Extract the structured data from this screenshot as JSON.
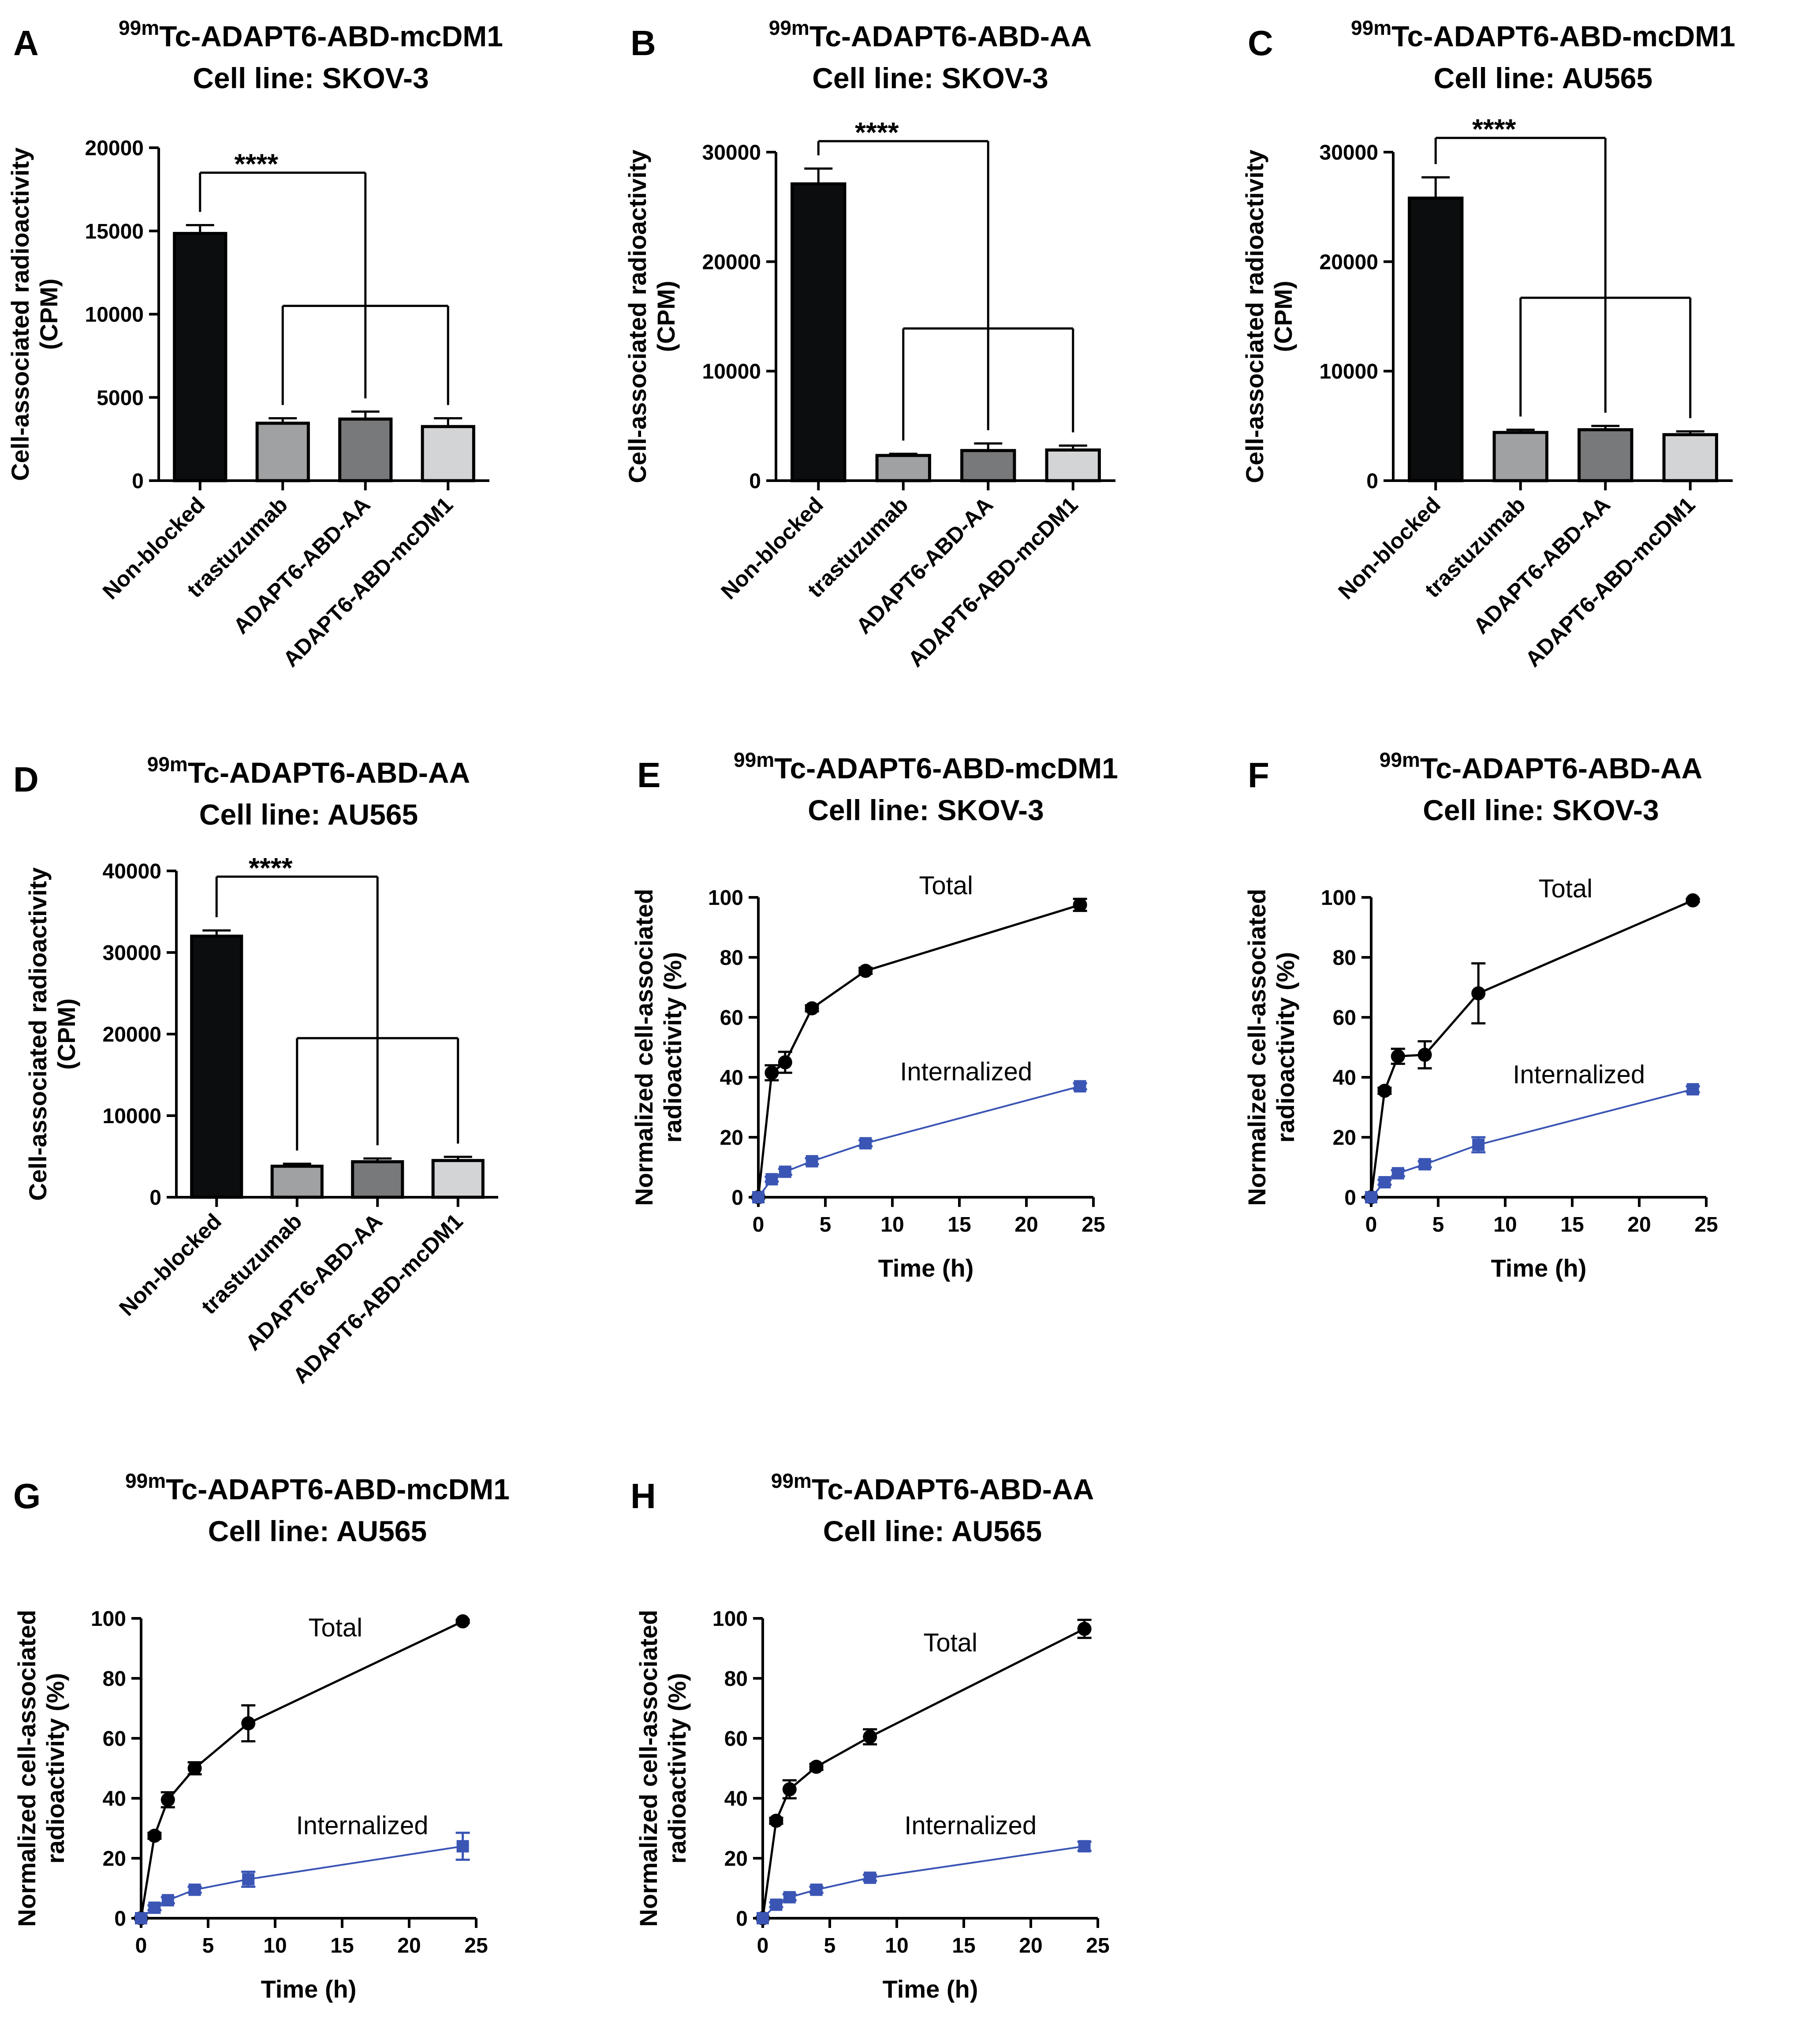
{
  "colors": {
    "bar_fills": [
      "#0b0d0e",
      "#a0a1a3",
      "#78797b",
      "#d3d4d5"
    ],
    "total": "#000000",
    "internalized": "#3a55b4",
    "axis": "#000000"
  },
  "chart_data": [
    {
      "panel": "A",
      "type": "bar",
      "title_sup": "99m",
      "title_line1": "Tc-ADAPT6-ABD-mcDM1",
      "title_line2": "Cell line: SKOV-3",
      "ylabel_line1": "Cell-associated radioactivity",
      "ylabel_line2": "(CPM)",
      "categories": [
        "Non-blocked",
        "trastuzumab",
        "ADAPT6-ABD-AA",
        "ADAPT6-ABD-mcDM1"
      ],
      "values": [
        14850,
        3450,
        3700,
        3250
      ],
      "errors": [
        500,
        300,
        450,
        500
      ],
      "ylim": [
        0,
        20000
      ],
      "yticks": [
        0,
        5000,
        10000,
        15000,
        20000
      ],
      "yticklabels": [
        "0",
        "5000",
        "10000",
        "15000",
        "20000"
      ],
      "significance": "****",
      "bracket_top": 18500,
      "bracket_low": 10500
    },
    {
      "panel": "B",
      "type": "bar",
      "title_sup": "99m",
      "title_line1": "Tc-ADAPT6-ABD-AA",
      "title_line2": "Cell line: SKOV-3",
      "ylabel_line1": "Cell-associated radioactivity",
      "ylabel_line2": "(CPM)",
      "categories": [
        "Non-blocked",
        "trastuzumab",
        "ADAPT6-ABD-AA",
        "ADAPT6-ABD-mcDM1"
      ],
      "values": [
        27100,
        2300,
        2750,
        2800
      ],
      "errors": [
        1400,
        150,
        650,
        400
      ],
      "ylim": [
        0,
        30000
      ],
      "yticks": [
        0,
        10000,
        20000,
        30000
      ],
      "yticklabels": [
        "0",
        "10000",
        "20000",
        "30000"
      ],
      "significance": "****",
      "bracket_top": 31000,
      "bracket_low": 13900
    },
    {
      "panel": "C",
      "type": "bar",
      "title_sup": "99m",
      "title_line1": "Tc-ADAPT6-ABD-mcDM1",
      "title_line2": "Cell line: AU565",
      "ylabel_line1": "Cell-associated radioactivity",
      "ylabel_line2": "(CPM)",
      "categories": [
        "Non-blocked",
        "trastuzumab",
        "ADAPT6-ABD-AA",
        "ADAPT6-ABD-mcDM1"
      ],
      "values": [
        25800,
        4400,
        4650,
        4200
      ],
      "errors": [
        1900,
        250,
        350,
        300
      ],
      "ylim": [
        0,
        30000
      ],
      "yticks": [
        0,
        10000,
        20000,
        30000
      ],
      "yticklabels": [
        "0",
        "10000",
        "20000",
        "30000"
      ],
      "significance": "****",
      "bracket_top": 31300,
      "bracket_low": 16700
    },
    {
      "panel": "D",
      "type": "bar",
      "title_sup": "99m",
      "title_line1": "Tc-ADAPT6-ABD-AA",
      "title_line2": "Cell line: AU565",
      "ylabel_line1": "Cell-associated radioactivity",
      "ylabel_line2": "(CPM)",
      "categories": [
        "Non-blocked",
        "trastuzumab",
        "ADAPT6-ABD-AA",
        "ADAPT6-ABD-mcDM1"
      ],
      "values": [
        32000,
        3800,
        4350,
        4500
      ],
      "errors": [
        700,
        300,
        400,
        450
      ],
      "ylim": [
        0,
        40000
      ],
      "yticks": [
        0,
        10000,
        20000,
        30000,
        40000
      ],
      "yticklabels": [
        "0",
        "10000",
        "20000",
        "30000",
        "40000"
      ],
      "significance": "****",
      "bracket_top": 39300,
      "bracket_low": 19500
    },
    {
      "panel": "E",
      "type": "line",
      "title_sup": "99m",
      "title_line1": "Tc-ADAPT6-ABD-mcDM1",
      "title_line2": "Cell line: SKOV-3",
      "ylabel_line1": "Normalized cell-associated",
      "ylabel_line2": "radioactivity (%)",
      "xlabel": "Time (h)",
      "xlim": [
        0,
        25
      ],
      "ylim": [
        0,
        100
      ],
      "xticks": [
        0,
        5,
        10,
        15,
        20,
        25
      ],
      "xticklabels": [
        "0",
        "5",
        "10",
        "15",
        "20",
        "25"
      ],
      "yticks": [
        0,
        20,
        40,
        60,
        80,
        100
      ],
      "yticklabels": [
        "0",
        "20",
        "40",
        "60",
        "80",
        "100"
      ],
      "x": [
        0,
        1,
        2,
        4,
        8,
        24
      ],
      "series": [
        {
          "name": "Total",
          "values": [
            0,
            41.5,
            45,
            63,
            75.5,
            97.5
          ],
          "errors": [
            0,
            2.5,
            3.5,
            1,
            1,
            2
          ]
        },
        {
          "name": "Internalized",
          "values": [
            0,
            6,
            8.5,
            12,
            18,
            37
          ],
          "errors": [
            0,
            0.8,
            1,
            1,
            1,
            1
          ]
        }
      ],
      "label_pos": [
        {
          "x": 14,
          "y": 101
        },
        {
          "x": 15.5,
          "y": 39
        }
      ]
    },
    {
      "panel": "F",
      "type": "line",
      "title_sup": "99m",
      "title_line1": "Tc-ADAPT6-ABD-AA",
      "title_line2": "Cell line: SKOV-3",
      "ylabel_line1": "Normalized cell-associated",
      "ylabel_line2": "radioactivity (%)",
      "xlabel": "Time (h)",
      "xlim": [
        0,
        25
      ],
      "ylim": [
        0,
        100
      ],
      "xticks": [
        0,
        5,
        10,
        15,
        20,
        25
      ],
      "xticklabels": [
        "0",
        "5",
        "10",
        "15",
        "20",
        "25"
      ],
      "yticks": [
        0,
        20,
        40,
        60,
        80,
        100
      ],
      "yticklabels": [
        "0",
        "20",
        "40",
        "60",
        "80",
        "100"
      ],
      "x": [
        0,
        1,
        2,
        4,
        8,
        24
      ],
      "series": [
        {
          "name": "Total",
          "values": [
            0,
            35.5,
            47,
            47.5,
            68,
            99
          ],
          "errors": [
            0,
            1,
            2.5,
            4.5,
            10,
            0.5
          ]
        },
        {
          "name": "Internalized",
          "values": [
            0,
            5,
            8,
            11,
            17.5,
            36
          ],
          "errors": [
            0,
            0.8,
            1,
            1,
            2.5,
            1
          ]
        }
      ],
      "label_pos": [
        {
          "x": 14.5,
          "y": 100
        },
        {
          "x": 15.5,
          "y": 38
        }
      ]
    },
    {
      "panel": "G",
      "type": "line",
      "title_sup": "99m",
      "title_line1": "Tc-ADAPT6-ABD-mcDM1",
      "title_line2": "Cell line: AU565",
      "ylabel_line1": "Normalized cell-associated",
      "ylabel_line2": "radioactivity (%)",
      "xlabel": "Time (h)",
      "xlim": [
        0,
        25
      ],
      "ylim": [
        0,
        100
      ],
      "xticks": [
        0,
        5,
        10,
        15,
        20,
        25
      ],
      "xticklabels": [
        "0",
        "5",
        "10",
        "15",
        "20",
        "25"
      ],
      "yticks": [
        0,
        20,
        40,
        60,
        80,
        100
      ],
      "yticklabels": [
        "0",
        "20",
        "40",
        "60",
        "80",
        "100"
      ],
      "x": [
        0,
        1,
        2,
        4,
        8,
        24
      ],
      "series": [
        {
          "name": "Total",
          "values": [
            0,
            27.5,
            39.5,
            50,
            65,
            99
          ],
          "errors": [
            0,
            1,
            2.5,
            2,
            6,
            0.5
          ]
        },
        {
          "name": "Internalized",
          "values": [
            0,
            3.5,
            6,
            9.5,
            13,
            24
          ],
          "errors": [
            0,
            0.8,
            1,
            1,
            2.5,
            4.5
          ]
        }
      ],
      "label_pos": [
        {
          "x": 14.5,
          "y": 94
        },
        {
          "x": 16.5,
          "y": 28
        }
      ]
    },
    {
      "panel": "H",
      "type": "line",
      "title_sup": "99m",
      "title_line1": "Tc-ADAPT6-ABD-AA",
      "title_line2": "Cell line: AU565",
      "ylabel_line1": "Normalized cell-associated",
      "ylabel_line2": "radioactivity (%)",
      "xlabel": "Time (h)",
      "xlim": [
        0,
        25
      ],
      "ylim": [
        0,
        100
      ],
      "xticks": [
        0,
        5,
        10,
        15,
        20,
        25
      ],
      "xticklabels": [
        "0",
        "5",
        "10",
        "15",
        "20",
        "25"
      ],
      "yticks": [
        0,
        20,
        40,
        60,
        80,
        100
      ],
      "yticklabels": [
        "0",
        "20",
        "40",
        "60",
        "80",
        "100"
      ],
      "x": [
        0,
        1,
        2,
        4,
        8,
        24
      ],
      "series": [
        {
          "name": "Total",
          "values": [
            0,
            32.5,
            43,
            50.5,
            60.5,
            96.5
          ],
          "errors": [
            0,
            1,
            3,
            1,
            2.5,
            3
          ]
        },
        {
          "name": "Internalized",
          "values": [
            0,
            4.5,
            7,
            9.5,
            13.5,
            24
          ],
          "errors": [
            0,
            0.8,
            1,
            1,
            1,
            1.5
          ]
        }
      ],
      "label_pos": [
        {
          "x": 14,
          "y": 89
        },
        {
          "x": 15.5,
          "y": 28
        }
      ]
    }
  ]
}
